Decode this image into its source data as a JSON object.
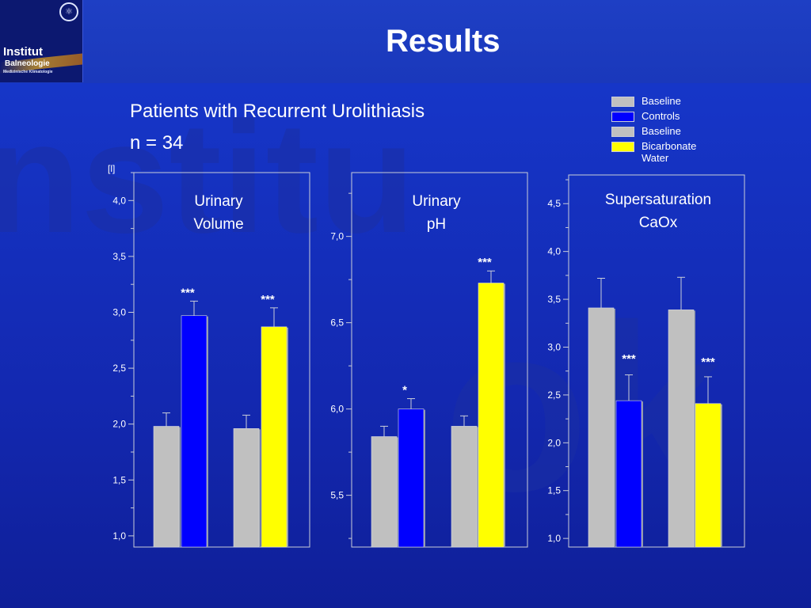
{
  "header": {
    "title": "Results",
    "logo": {
      "line1": "Institut",
      "line2": "Balneologie",
      "line3": "Medizinische Klimatologie",
      "icon": "university-seal-icon"
    }
  },
  "watermark": {
    "line1": "nstitu",
    "line2": "ok"
  },
  "subtitle": {
    "line1": "Patients with Recurrent Urolithiasis",
    "line2": "n = 34"
  },
  "legend": [
    {
      "label": "Baseline",
      "color": "#c0c0c0"
    },
    {
      "label": "Controls",
      "color": "#0000ff"
    },
    {
      "label": "Baseline",
      "color": "#c0c0c0"
    },
    {
      "label": "Bicarbonate Water",
      "color": "#ffff00"
    }
  ],
  "chart_data": [
    {
      "type": "bar",
      "title": "Urinary Volume",
      "title_lines": [
        "Urinary",
        "Volume"
      ],
      "ylabel": "[l]",
      "ylim": [
        0.9,
        4.25
      ],
      "yticks": [
        "1,0",
        "1,5",
        "2,0",
        "2,5",
        "3,0",
        "3,5",
        "4,0"
      ],
      "ytick_values": [
        1.0,
        1.5,
        2.0,
        2.5,
        3.0,
        3.5,
        4.0
      ],
      "groups": [
        {
          "bars": [
            {
              "series": "Baseline",
              "value": 1.98,
              "error": 0.12,
              "color": "#c0c0c0",
              "marker": ""
            },
            {
              "series": "Controls",
              "value": 2.97,
              "error": 0.13,
              "color": "#0000ff",
              "marker": "***"
            }
          ]
        },
        {
          "bars": [
            {
              "series": "Baseline",
              "value": 1.96,
              "error": 0.12,
              "color": "#c0c0c0",
              "marker": ""
            },
            {
              "series": "Bicarbonate Water",
              "value": 2.87,
              "error": 0.17,
              "color": "#ffff00",
              "marker": "***"
            }
          ]
        }
      ]
    },
    {
      "type": "bar",
      "title": "Urinary pH",
      "title_lines": [
        "Urinary",
        "pH"
      ],
      "ylabel": "",
      "ylim": [
        5.2,
        7.37
      ],
      "yticks": [
        "5,5",
        "6,0",
        "6,5",
        "7,0"
      ],
      "ytick_values": [
        5.5,
        6.0,
        6.5,
        7.0
      ],
      "groups": [
        {
          "bars": [
            {
              "series": "Baseline",
              "value": 5.84,
              "error": 0.06,
              "color": "#c0c0c0",
              "marker": ""
            },
            {
              "series": "Controls",
              "value": 6.0,
              "error": 0.06,
              "color": "#0000ff",
              "marker": "*"
            }
          ]
        },
        {
          "bars": [
            {
              "series": "Baseline",
              "value": 5.9,
              "error": 0.06,
              "color": "#c0c0c0",
              "marker": ""
            },
            {
              "series": "Bicarbonate Water",
              "value": 6.73,
              "error": 0.07,
              "color": "#ffff00",
              "marker": "***"
            }
          ]
        }
      ]
    },
    {
      "type": "bar",
      "title": "Supersaturation CaOx",
      "title_lines": [
        "Supersaturation",
        "CaOx"
      ],
      "ylabel": "",
      "ylim": [
        0.91,
        4.8
      ],
      "yticks": [
        "1,0",
        "1,5",
        "2,0",
        "2,5",
        "3,0",
        "3,5",
        "4,0",
        "4,5"
      ],
      "ytick_values": [
        1.0,
        1.5,
        2.0,
        2.5,
        3.0,
        3.5,
        4.0,
        4.5
      ],
      "groups": [
        {
          "bars": [
            {
              "series": "Baseline",
              "value": 3.41,
              "error": 0.31,
              "color": "#c0c0c0",
              "marker": ""
            },
            {
              "series": "Controls",
              "value": 2.44,
              "error": 0.27,
              "color": "#0000ff",
              "marker": "***"
            }
          ]
        },
        {
          "bars": [
            {
              "series": "Baseline",
              "value": 3.39,
              "error": 0.34,
              "color": "#c0c0c0",
              "marker": ""
            },
            {
              "series": "Bicarbonate Water",
              "value": 2.41,
              "error": 0.28,
              "color": "#ffff00",
              "marker": "***"
            }
          ]
        }
      ]
    }
  ]
}
